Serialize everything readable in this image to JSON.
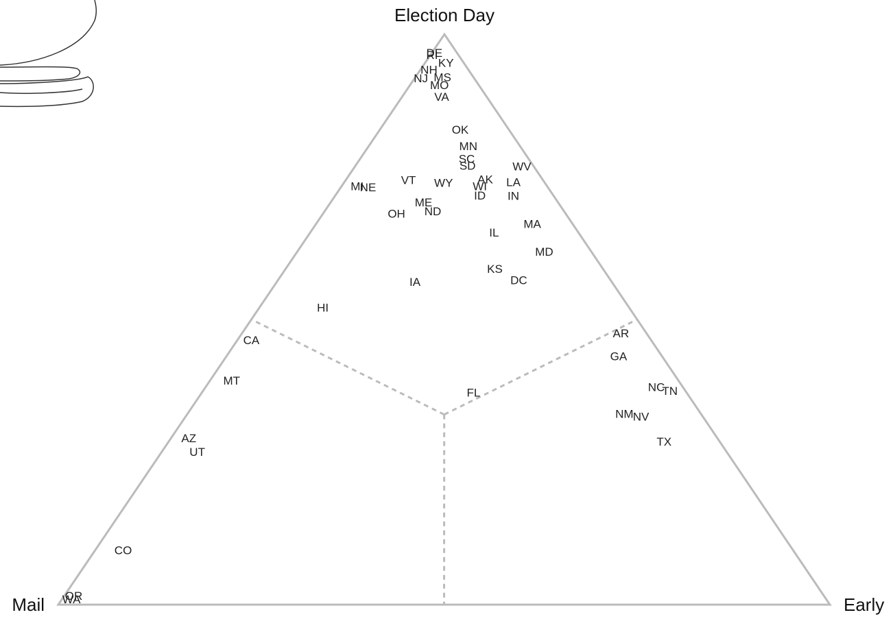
{
  "chart_data": {
    "type": "ternary",
    "vertex_labels": {
      "election_day": "Election Day",
      "mail": "Mail",
      "early": "Early"
    },
    "points": [
      {
        "label": "RI",
        "mail": 3.5,
        "election_day": 96.2,
        "early": 0.3
      },
      {
        "label": "DE",
        "mail": 3.0,
        "election_day": 96.6,
        "early": 0.4
      },
      {
        "label": "KY",
        "mail": 2.4,
        "election_day": 94.8,
        "early": 2.8
      },
      {
        "label": "NH",
        "mail": 5.2,
        "election_day": 93.6,
        "early": 1.2
      },
      {
        "label": "NJ",
        "mail": 7.0,
        "election_day": 92.1,
        "early": 0.9
      },
      {
        "label": "MS",
        "mail": 4.1,
        "election_day": 92.3,
        "early": 3.6
      },
      {
        "label": "MO",
        "mail": 5.2,
        "election_day": 90.9,
        "early": 3.9
      },
      {
        "label": "VA",
        "mail": 5.9,
        "election_day": 88.9,
        "early": 5.2
      },
      {
        "label": "OK",
        "mail": 6.4,
        "election_day": 83.1,
        "early": 10.5
      },
      {
        "label": "MN",
        "mail": 6.8,
        "election_day": 80.2,
        "early": 13.0
      },
      {
        "label": "SC",
        "mail": 8.1,
        "election_day": 78.0,
        "early": 13.9
      },
      {
        "label": "SD",
        "mail": 8.6,
        "election_day": 76.8,
        "early": 14.6
      },
      {
        "label": "WV",
        "mail": 1.6,
        "election_day": 76.7,
        "early": 21.7
      },
      {
        "label": "MI",
        "mail": 24.7,
        "election_day": 73.2,
        "early": 2.1
      },
      {
        "label": "NE",
        "mail": 23.4,
        "election_day": 73.0,
        "early": 3.6
      },
      {
        "label": "VT",
        "mail": 17.5,
        "election_day": 74.3,
        "early": 8.2
      },
      {
        "label": "WY",
        "mail": 13.2,
        "election_day": 73.8,
        "early": 13.0
      },
      {
        "label": "AK",
        "mail": 7.5,
        "election_day": 74.4,
        "early": 18.1
      },
      {
        "label": "WI",
        "mail": 8.8,
        "election_day": 73.2,
        "early": 18.0
      },
      {
        "label": "ID",
        "mail": 9.6,
        "election_day": 71.6,
        "early": 18.8
      },
      {
        "label": "LA",
        "mail": 4.1,
        "election_day": 73.9,
        "early": 22.0
      },
      {
        "label": "IN",
        "mail": 5.3,
        "election_day": 71.5,
        "early": 23.2
      },
      {
        "label": "ME",
        "mail": 17.5,
        "election_day": 70.4,
        "early": 12.1
      },
      {
        "label": "ND",
        "mail": 17.1,
        "election_day": 68.8,
        "early": 14.1
      },
      {
        "label": "OH",
        "mail": 22.0,
        "election_day": 68.4,
        "early": 9.6
      },
      {
        "label": "IL",
        "mail": 11.0,
        "election_day": 65.1,
        "early": 23.9
      },
      {
        "label": "MA",
        "mail": 5.3,
        "election_day": 66.6,
        "early": 28.1
      },
      {
        "label": "MD",
        "mail": 6.2,
        "election_day": 61.7,
        "early": 32.1
      },
      {
        "label": "KS",
        "mail": 14.1,
        "election_day": 58.7,
        "early": 27.2
      },
      {
        "label": "DC",
        "mail": 12.0,
        "election_day": 56.7,
        "early": 31.3
      },
      {
        "label": "IA",
        "mail": 25.6,
        "election_day": 56.4,
        "early": 18.0
      },
      {
        "label": "HI",
        "mail": 39.8,
        "election_day": 51.9,
        "early": 8.3
      },
      {
        "label": "CA",
        "mail": 51.9,
        "election_day": 46.2,
        "early": 1.9
      },
      {
        "label": "AR",
        "mail": 3.4,
        "election_day": 47.4,
        "early": 49.2
      },
      {
        "label": "GA",
        "mail": 5.7,
        "election_day": 43.4,
        "early": 50.9
      },
      {
        "label": "MT",
        "mail": 58.0,
        "election_day": 39.1,
        "early": 2.9
      },
      {
        "label": "FL",
        "mail": 27.7,
        "election_day": 37.0,
        "early": 35.3
      },
      {
        "label": "NC",
        "mail": 3.5,
        "election_day": 38.0,
        "early": 58.5
      },
      {
        "label": "TN",
        "mail": 2.1,
        "election_day": 37.3,
        "early": 60.6
      },
      {
        "label": "NM",
        "mail": 10.0,
        "election_day": 33.3,
        "early": 56.7
      },
      {
        "label": "NV",
        "mail": 8.1,
        "election_day": 32.8,
        "early": 59.1
      },
      {
        "label": "TX",
        "mail": 7.3,
        "election_day": 28.4,
        "early": 64.3
      },
      {
        "label": "AZ",
        "mail": 68.6,
        "election_day": 29.0,
        "early": 2.4
      },
      {
        "label": "UT",
        "mail": 68.7,
        "election_day": 26.6,
        "early": 4.7
      },
      {
        "label": "CO",
        "mail": 86.9,
        "election_day": 9.4,
        "early": 3.7
      },
      {
        "label": "OR",
        "mail": 97.3,
        "election_day": 1.4,
        "early": 1.3
      },
      {
        "label": "WA",
        "mail": 97.9,
        "election_day": 0.8,
        "early": 1.3
      }
    ]
  }
}
